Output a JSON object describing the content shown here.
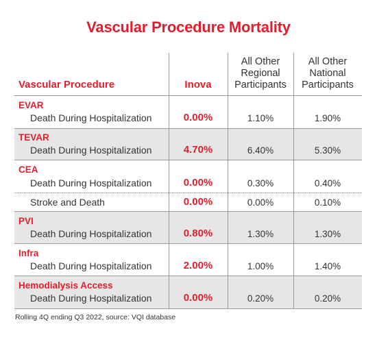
{
  "title": "Vascular Procedure Mortality",
  "headers": {
    "procedure": "Vascular Procedure",
    "inova": "Inova",
    "regional": [
      "All Other",
      "Regional",
      "Participants"
    ],
    "national": [
      "All Other",
      "National",
      "Participants"
    ]
  },
  "rows": [
    {
      "category": "EVAR",
      "label": "Death During Hospitalization",
      "inova": "0.00%",
      "regional": "1.10%",
      "national": "1.90%"
    },
    {
      "category": "TEVAR",
      "label": "Death During Hospitalization",
      "inova": "4.70%",
      "regional": "6.40%",
      "national": "5.30%"
    },
    {
      "category": "CEA",
      "label": "Death During Hospitalization",
      "inova": "0.00%",
      "regional": "0.30%",
      "national": "0.40%"
    },
    {
      "category": "",
      "label": "Stroke and Death",
      "inova": "0.00%",
      "regional": "0.00%",
      "national": "0.10%"
    },
    {
      "category": "PVI",
      "label": "Death During Hospitalization",
      "inova": "0.80%",
      "regional": "1.30%",
      "national": "1.30%"
    },
    {
      "category": "Infra",
      "label": "Death During Hospitalization",
      "inova": "2.00%",
      "regional": "1.00%",
      "national": "1.40%"
    },
    {
      "category": "Hemodialysis Access",
      "label": "Death During Hospitalization",
      "inova": "0.00%",
      "regional": "0.20%",
      "national": "0.20%"
    }
  ],
  "footnote": "Rolling 4Q ending Q3 2022, source: VQI database",
  "colors": {
    "accent": "#e31d2b",
    "band": "#e6e6e6",
    "text": "#333333"
  }
}
